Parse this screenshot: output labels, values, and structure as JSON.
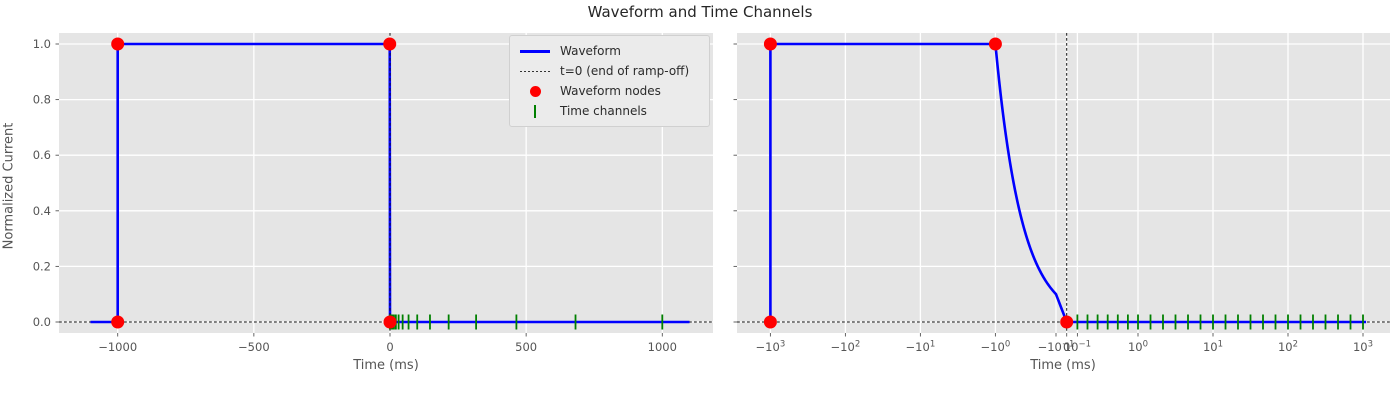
{
  "chart_data": {
    "type": "line",
    "title": "Waveform and Time Channels",
    "ylabel": "Normalized Current",
    "grid": true,
    "waveform_ms_y": [
      [
        -1100,
        0
      ],
      [
        -1000,
        0
      ],
      [
        -1000,
        1
      ],
      [
        -1,
        1
      ],
      [
        0,
        0
      ],
      [
        1100,
        0
      ]
    ],
    "waveform_nodes_ms_y": [
      [
        -1000,
        0
      ],
      [
        -1000,
        1
      ],
      [
        -1,
        1
      ],
      [
        0,
        0
      ]
    ],
    "time_channels_ms": [
      0.1,
      0.1468,
      0.2154,
      0.3162,
      0.4642,
      0.6813,
      1.0,
      1.468,
      2.154,
      3.162,
      4.642,
      6.813,
      10.0,
      14.68,
      21.54,
      31.62,
      46.42,
      68.13,
      100.0,
      146.8,
      215.4,
      316.2,
      464.2,
      681.3,
      1000.0
    ],
    "ref_lines": {
      "vertical_t0_ms": 0,
      "horizontal_y0": 0
    },
    "yticks": [
      0,
      0.2,
      0.4,
      0.6,
      0.8,
      1
    ],
    "yticklabels": [
      "0.0",
      "0.2",
      "0.4",
      "0.6",
      "0.8",
      "1.0"
    ],
    "subplots": [
      {
        "xlabel": "Time (ms)",
        "x_scale": "linear",
        "xlim_ms": [
          -1210,
          1210
        ],
        "xticks": [
          -1000,
          -500,
          0,
          500,
          1000
        ],
        "xticklabels": [
          {
            "t": "−1000"
          },
          {
            "t": "−500"
          },
          {
            "t": "0"
          },
          {
            "t": "500"
          },
          {
            "t": "1000"
          }
        ],
        "show_ytick_labels": true,
        "has_legend": true
      },
      {
        "xlabel": "Time (ms)",
        "x_scale": "symlog",
        "linthresh_ms": 0.1,
        "xticks": [
          -1000,
          -100,
          -10,
          -1,
          -0.1,
          0,
          0.1,
          1,
          10,
          100,
          1000
        ],
        "xticklabels": [
          {
            "t": "−10",
            "e": "3"
          },
          {
            "t": "−10",
            "e": "2"
          },
          {
            "t": "−10",
            "e": "1"
          },
          {
            "t": "−10",
            "e": "0"
          },
          {
            "t": "−10",
            "e": "−1"
          },
          {
            "t": "0"
          },
          {
            "t": "10",
            "e": "−1"
          },
          {
            "t": "10",
            "e": "0"
          },
          {
            "t": "10",
            "e": "1"
          },
          {
            "t": "10",
            "e": "2"
          },
          {
            "t": "10",
            "e": "3"
          }
        ],
        "show_ytick_labels": false,
        "has_legend": false
      }
    ]
  },
  "legend": {
    "items": [
      {
        "label": "Waveform",
        "swatch": "line"
      },
      {
        "label": "t=0 (end of ramp-off)",
        "swatch": "dashed-line"
      },
      {
        "label": "Waveform nodes",
        "swatch": "dot"
      },
      {
        "label": "Time channels",
        "swatch": "vertical-tick"
      }
    ]
  },
  "colors": {
    "waveform": "#0000ff",
    "nodes": "#ff0000",
    "channels": "#008000",
    "ref_line": "#141414",
    "plot_bg": "#e5e5e5",
    "grid": "#ffffff",
    "tick_text": "#555555",
    "title_text": "#262626"
  }
}
